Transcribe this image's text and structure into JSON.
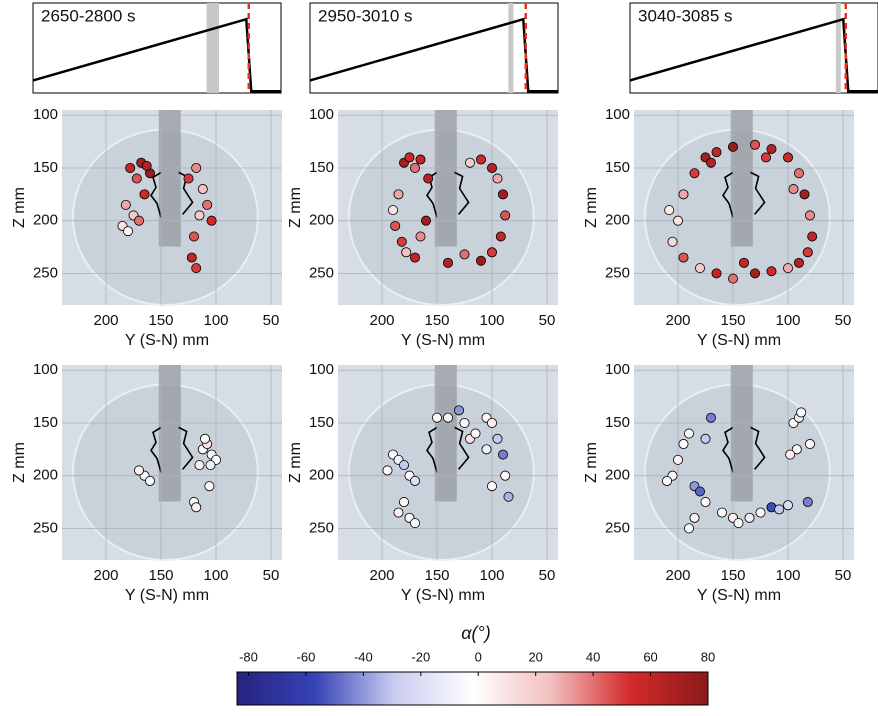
{
  "chart_data": [
    {
      "type": "line",
      "title": "2650-2800 s",
      "x": [
        0,
        0.86,
        0.88,
        1
      ],
      "values": [
        0.14,
        0.82,
        0.02,
        0.02
      ],
      "xlim": [
        0,
        1
      ],
      "ylim": [
        0,
        1
      ],
      "color": "#000000",
      "band": [
        0.7,
        0.75
      ],
      "marker_x": 0.87
    },
    {
      "type": "line",
      "title": "2950-3010 s",
      "x": [
        0,
        0.86,
        0.88,
        1
      ],
      "values": [
        0.14,
        0.82,
        0.02,
        0.02
      ],
      "xlim": [
        0,
        1
      ],
      "ylim": [
        0,
        1
      ],
      "color": "#000000",
      "band": [
        0.8,
        0.82
      ],
      "marker_x": 0.87
    },
    {
      "type": "line",
      "title": "3040-3085 s",
      "x": [
        0,
        0.86,
        0.88,
        1
      ],
      "values": [
        0.14,
        0.82,
        0.02,
        0.02
      ],
      "xlim": [
        0,
        1
      ],
      "ylim": [
        0,
        1
      ],
      "color": "#000000",
      "band": [
        0.83,
        0.85
      ],
      "marker_x": 0.87
    },
    {
      "type": "scatter",
      "xlabel": "Y (S-N) mm",
      "ylabel": "Z mm",
      "xlim": [
        240,
        40
      ],
      "ylim": [
        95,
        280
      ],
      "xticks": [
        200,
        150,
        100,
        50
      ],
      "yticks": [
        100,
        150,
        200,
        250
      ],
      "grid": true,
      "x": [
        178,
        172,
        168,
        182,
        175,
        165,
        160,
        185,
        180,
        170,
        163,
        125,
        118,
        112,
        108,
        104,
        115,
        120,
        122,
        118
      ],
      "y": [
        150,
        160,
        145,
        185,
        195,
        175,
        155,
        205,
        210,
        200,
        148,
        160,
        150,
        170,
        185,
        200,
        195,
        215,
        235,
        245
      ],
      "c": [
        60,
        45,
        70,
        30,
        20,
        55,
        75,
        10,
        5,
        40,
        65,
        50,
        35,
        25,
        40,
        55,
        20,
        45,
        60,
        50
      ]
    },
    {
      "type": "scatter",
      "xlabel": "Y (S-N) mm",
      "ylabel": "Z mm",
      "xlim": [
        240,
        40
      ],
      "ylim": [
        95,
        280
      ],
      "xticks": [
        200,
        150,
        100,
        50
      ],
      "yticks": [
        100,
        150,
        200,
        250
      ],
      "grid": true,
      "x": [
        180,
        175,
        170,
        165,
        158,
        185,
        190,
        188,
        182,
        178,
        170,
        165,
        160,
        120,
        110,
        100,
        95,
        90,
        88,
        92,
        100,
        110,
        125,
        140
      ],
      "y": [
        145,
        140,
        150,
        142,
        160,
        175,
        190,
        205,
        220,
        230,
        235,
        215,
        200,
        145,
        142,
        150,
        160,
        175,
        195,
        215,
        230,
        238,
        232,
        240
      ],
      "c": [
        70,
        55,
        40,
        60,
        65,
        30,
        10,
        45,
        50,
        25,
        60,
        35,
        70,
        20,
        55,
        65,
        30,
        70,
        45,
        60,
        50,
        75,
        40,
        65
      ]
    },
    {
      "type": "scatter",
      "xlabel": "Y (S-N) mm",
      "ylabel": "Z mm",
      "xlim": [
        240,
        40
      ],
      "ylim": [
        95,
        280
      ],
      "xticks": [
        200,
        150,
        100,
        50
      ],
      "yticks": [
        100,
        150,
        200,
        250
      ],
      "grid": true,
      "x": [
        200,
        195,
        185,
        175,
        165,
        150,
        130,
        115,
        100,
        90,
        85,
        80,
        78,
        82,
        90,
        100,
        115,
        130,
        150,
        165,
        180,
        195,
        205,
        208,
        170,
        120,
        95,
        140
      ],
      "y": [
        200,
        175,
        155,
        140,
        135,
        130,
        128,
        132,
        140,
        155,
        175,
        195,
        215,
        230,
        240,
        245,
        248,
        250,
        255,
        250,
        245,
        235,
        220,
        190,
        145,
        140,
        170,
        240
      ],
      "c": [
        10,
        30,
        50,
        70,
        60,
        75,
        45,
        65,
        55,
        40,
        70,
        35,
        60,
        50,
        65,
        30,
        55,
        70,
        40,
        60,
        20,
        45,
        15,
        5,
        65,
        50,
        35,
        60
      ]
    },
    {
      "type": "scatter",
      "xlabel": "Y (S-N) mm",
      "ylabel": "Z mm",
      "xlim": [
        240,
        40
      ],
      "ylim": [
        95,
        280
      ],
      "xticks": [
        200,
        150,
        100,
        50
      ],
      "yticks": [
        100,
        150,
        200,
        250
      ],
      "grid": true,
      "x": [
        165,
        170,
        160,
        112,
        108,
        104,
        100,
        115,
        110,
        105,
        120,
        118,
        106
      ],
      "y": [
        200,
        195,
        205,
        175,
        170,
        180,
        185,
        190,
        165,
        190,
        225,
        230,
        210
      ],
      "c": [
        0,
        5,
        -5,
        0,
        10,
        -5,
        0,
        5,
        0,
        -10,
        0,
        5,
        0
      ]
    },
    {
      "type": "scatter",
      "xlabel": "Y (S-N) mm",
      "ylabel": "Z mm",
      "xlim": [
        240,
        40
      ],
      "ylim": [
        95,
        280
      ],
      "xticks": [
        200,
        150,
        100,
        50
      ],
      "yticks": [
        100,
        150,
        200,
        250
      ],
      "grid": true,
      "x": [
        190,
        185,
        180,
        175,
        170,
        150,
        140,
        130,
        125,
        105,
        100,
        95,
        90,
        88,
        85,
        100,
        105,
        180,
        185,
        175,
        170,
        195,
        120,
        115
      ],
      "y": [
        180,
        185,
        190,
        200,
        205,
        145,
        145,
        138,
        150,
        145,
        150,
        165,
        180,
        200,
        220,
        210,
        175,
        225,
        235,
        240,
        245,
        195,
        165,
        160
      ],
      "c": [
        0,
        -10,
        -30,
        0,
        -20,
        0,
        5,
        -40,
        0,
        0,
        5,
        -30,
        -45,
        0,
        -35,
        0,
        -10,
        0,
        5,
        0,
        -5,
        0,
        10,
        0
      ]
    },
    {
      "type": "scatter",
      "xlabel": "Y (S-N) mm",
      "ylabel": "Z mm",
      "xlim": [
        240,
        40
      ],
      "ylim": [
        95,
        280
      ],
      "xticks": [
        200,
        150,
        100,
        50
      ],
      "yticks": [
        100,
        150,
        200,
        250
      ],
      "grid": true,
      "x": [
        205,
        200,
        195,
        190,
        185,
        180,
        175,
        185,
        190,
        170,
        160,
        150,
        145,
        135,
        125,
        115,
        108,
        100,
        95,
        90,
        88,
        92,
        98,
        80,
        82,
        175,
        210
      ],
      "y": [
        200,
        185,
        170,
        160,
        210,
        215,
        225,
        240,
        250,
        145,
        235,
        240,
        245,
        240,
        235,
        230,
        232,
        228,
        150,
        145,
        140,
        175,
        180,
        170,
        225,
        165,
        205
      ],
      "c": [
        0,
        5,
        0,
        -5,
        -40,
        -50,
        0,
        5,
        0,
        -45,
        0,
        5,
        0,
        -10,
        0,
        -55,
        -30,
        -20,
        0,
        5,
        0,
        0,
        5,
        0,
        -45,
        -30,
        0
      ]
    },
    {
      "type": "colorbar",
      "label": "α(°)",
      "lim": [
        -84,
        80
      ],
      "ticks": [
        -80,
        -60,
        -40,
        -20,
        0,
        20,
        40,
        60,
        80
      ],
      "colors": [
        "#27237f",
        "#3543b6",
        "#c9ccf0",
        "#ffffff",
        "#f2c0c0",
        "#d42b2b",
        "#8a1a1a"
      ]
    }
  ]
}
